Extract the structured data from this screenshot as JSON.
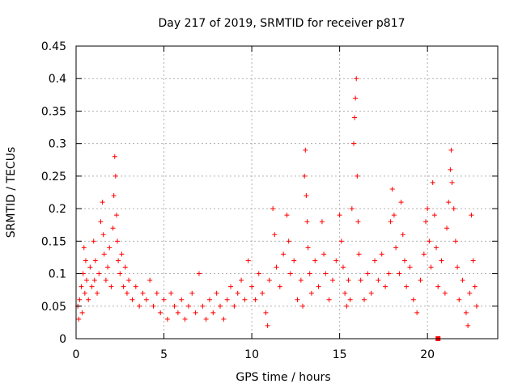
{
  "chart_data": {
    "type": "scatter",
    "title": "Day 217 of 2019, SRMTID for receiver p817",
    "xlabel": "GPS time / hours",
    "ylabel": "SRMTID / TECUs",
    "xlim": [
      0,
      24
    ],
    "ylim": [
      0,
      0.45
    ],
    "xticks": [
      0,
      5,
      10,
      15,
      20
    ],
    "xtick_labels": [
      "0",
      "5",
      "10",
      "15",
      "20"
    ],
    "yticks": [
      0,
      0.05,
      0.1,
      0.15,
      0.2,
      0.25,
      0.3,
      0.35,
      0.4,
      0.45
    ],
    "ytick_labels": [
      "0",
      "0.05",
      "0.1",
      "0.15",
      "0.2",
      "0.25",
      "0.3",
      "0.35",
      "0.4",
      "0.45"
    ],
    "grid": true,
    "marker": "+",
    "color": "#ff0000",
    "series": [
      {
        "name": "SRMTID",
        "points": [
          [
            0.1,
            0.05
          ],
          [
            0.15,
            0.03
          ],
          [
            0.2,
            0.06
          ],
          [
            0.3,
            0.08
          ],
          [
            0.35,
            0.04
          ],
          [
            0.4,
            0.1
          ],
          [
            0.45,
            0.14
          ],
          [
            0.5,
            0.07
          ],
          [
            0.55,
            0.12
          ],
          [
            0.6,
            0.09
          ],
          [
            0.7,
            0.06
          ],
          [
            0.8,
            0.11
          ],
          [
            0.9,
            0.08
          ],
          [
            1.0,
            0.15
          ],
          [
            1.05,
            0.09
          ],
          [
            1.1,
            0.12
          ],
          [
            1.2,
            0.07
          ],
          [
            1.3,
            0.1
          ],
          [
            1.4,
            0.18
          ],
          [
            1.5,
            0.21
          ],
          [
            1.55,
            0.16
          ],
          [
            1.6,
            0.13
          ],
          [
            1.7,
            0.09
          ],
          [
            1.8,
            0.11
          ],
          [
            1.9,
            0.14
          ],
          [
            2.0,
            0.08
          ],
          [
            2.1,
            0.17
          ],
          [
            2.15,
            0.22
          ],
          [
            2.2,
            0.28
          ],
          [
            2.25,
            0.25
          ],
          [
            2.3,
            0.19
          ],
          [
            2.35,
            0.15
          ],
          [
            2.4,
            0.12
          ],
          [
            2.5,
            0.1
          ],
          [
            2.6,
            0.13
          ],
          [
            2.7,
            0.08
          ],
          [
            2.8,
            0.11
          ],
          [
            2.9,
            0.07
          ],
          [
            3.0,
            0.09
          ],
          [
            3.2,
            0.06
          ],
          [
            3.4,
            0.08
          ],
          [
            3.6,
            0.05
          ],
          [
            3.8,
            0.07
          ],
          [
            4.0,
            0.06
          ],
          [
            4.2,
            0.09
          ],
          [
            4.4,
            0.05
          ],
          [
            4.6,
            0.07
          ],
          [
            4.8,
            0.04
          ],
          [
            5.0,
            0.06
          ],
          [
            5.2,
            0.03
          ],
          [
            5.4,
            0.07
          ],
          [
            5.6,
            0.05
          ],
          [
            5.8,
            0.04
          ],
          [
            6.0,
            0.06
          ],
          [
            6.2,
            0.03
          ],
          [
            6.4,
            0.05
          ],
          [
            6.6,
            0.07
          ],
          [
            6.8,
            0.04
          ],
          [
            7.0,
            0.1
          ],
          [
            7.2,
            0.05
          ],
          [
            7.4,
            0.03
          ],
          [
            7.6,
            0.06
          ],
          [
            7.8,
            0.04
          ],
          [
            8.0,
            0.07
          ],
          [
            8.2,
            0.05
          ],
          [
            8.4,
            0.03
          ],
          [
            8.6,
            0.06
          ],
          [
            8.8,
            0.08
          ],
          [
            9.0,
            0.05
          ],
          [
            9.2,
            0.07
          ],
          [
            9.4,
            0.09
          ],
          [
            9.6,
            0.06
          ],
          [
            9.8,
            0.12
          ],
          [
            10.0,
            0.08
          ],
          [
            10.2,
            0.06
          ],
          [
            10.4,
            0.1
          ],
          [
            10.6,
            0.07
          ],
          [
            10.8,
            0.04
          ],
          [
            10.9,
            0.02
          ],
          [
            11.0,
            0.09
          ],
          [
            11.2,
            0.2
          ],
          [
            11.3,
            0.16
          ],
          [
            11.4,
            0.11
          ],
          [
            11.6,
            0.08
          ],
          [
            11.8,
            0.13
          ],
          [
            12.0,
            0.19
          ],
          [
            12.1,
            0.15
          ],
          [
            12.2,
            0.1
          ],
          [
            12.4,
            0.12
          ],
          [
            12.6,
            0.06
          ],
          [
            12.8,
            0.09
          ],
          [
            12.9,
            0.05
          ],
          [
            13.0,
            0.25
          ],
          [
            13.05,
            0.29
          ],
          [
            13.1,
            0.22
          ],
          [
            13.15,
            0.18
          ],
          [
            13.2,
            0.14
          ],
          [
            13.3,
            0.1
          ],
          [
            13.4,
            0.07
          ],
          [
            13.6,
            0.12
          ],
          [
            13.8,
            0.08
          ],
          [
            14.0,
            0.18
          ],
          [
            14.1,
            0.13
          ],
          [
            14.2,
            0.1
          ],
          [
            14.4,
            0.06
          ],
          [
            14.6,
            0.09
          ],
          [
            14.8,
            0.12
          ],
          [
            15.0,
            0.19
          ],
          [
            15.1,
            0.15
          ],
          [
            15.2,
            0.11
          ],
          [
            15.3,
            0.07
          ],
          [
            15.4,
            0.05
          ],
          [
            15.5,
            0.09
          ],
          [
            15.6,
            0.06
          ],
          [
            15.7,
            0.2
          ],
          [
            15.8,
            0.3
          ],
          [
            15.85,
            0.34
          ],
          [
            15.9,
            0.37
          ],
          [
            15.95,
            0.4
          ],
          [
            16.0,
            0.25
          ],
          [
            16.05,
            0.18
          ],
          [
            16.1,
            0.13
          ],
          [
            16.2,
            0.09
          ],
          [
            16.4,
            0.06
          ],
          [
            16.6,
            0.1
          ],
          [
            16.8,
            0.07
          ],
          [
            17.0,
            0.12
          ],
          [
            17.2,
            0.09
          ],
          [
            17.4,
            0.13
          ],
          [
            17.6,
            0.08
          ],
          [
            17.8,
            0.1
          ],
          [
            17.9,
            0.18
          ],
          [
            18.0,
            0.23
          ],
          [
            18.1,
            0.19
          ],
          [
            18.2,
            0.14
          ],
          [
            18.4,
            0.1
          ],
          [
            18.5,
            0.21
          ],
          [
            18.6,
            0.16
          ],
          [
            18.7,
            0.12
          ],
          [
            18.8,
            0.08
          ],
          [
            19.0,
            0.11
          ],
          [
            19.2,
            0.06
          ],
          [
            19.4,
            0.04
          ],
          [
            19.6,
            0.09
          ],
          [
            19.8,
            0.13
          ],
          [
            19.9,
            0.18
          ],
          [
            20.0,
            0.2
          ],
          [
            20.1,
            0.15
          ],
          [
            20.2,
            0.11
          ],
          [
            20.3,
            0.24
          ],
          [
            20.4,
            0.19
          ],
          [
            20.5,
            0.14
          ],
          [
            20.6,
            0.08
          ],
          [
            20.8,
            0.12
          ],
          [
            21.0,
            0.07
          ],
          [
            21.1,
            0.17
          ],
          [
            21.2,
            0.21
          ],
          [
            21.3,
            0.26
          ],
          [
            21.35,
            0.29
          ],
          [
            21.4,
            0.24
          ],
          [
            21.5,
            0.2
          ],
          [
            21.6,
            0.15
          ],
          [
            21.7,
            0.11
          ],
          [
            21.8,
            0.06
          ],
          [
            22.0,
            0.09
          ],
          [
            22.2,
            0.04
          ],
          [
            22.3,
            0.02
          ],
          [
            22.4,
            0.07
          ],
          [
            22.5,
            0.19
          ],
          [
            22.6,
            0.12
          ],
          [
            22.7,
            0.08
          ],
          [
            22.8,
            0.05
          ]
        ]
      }
    ],
    "outlier_markers": [
      [
        20.6,
        0.0
      ]
    ]
  }
}
